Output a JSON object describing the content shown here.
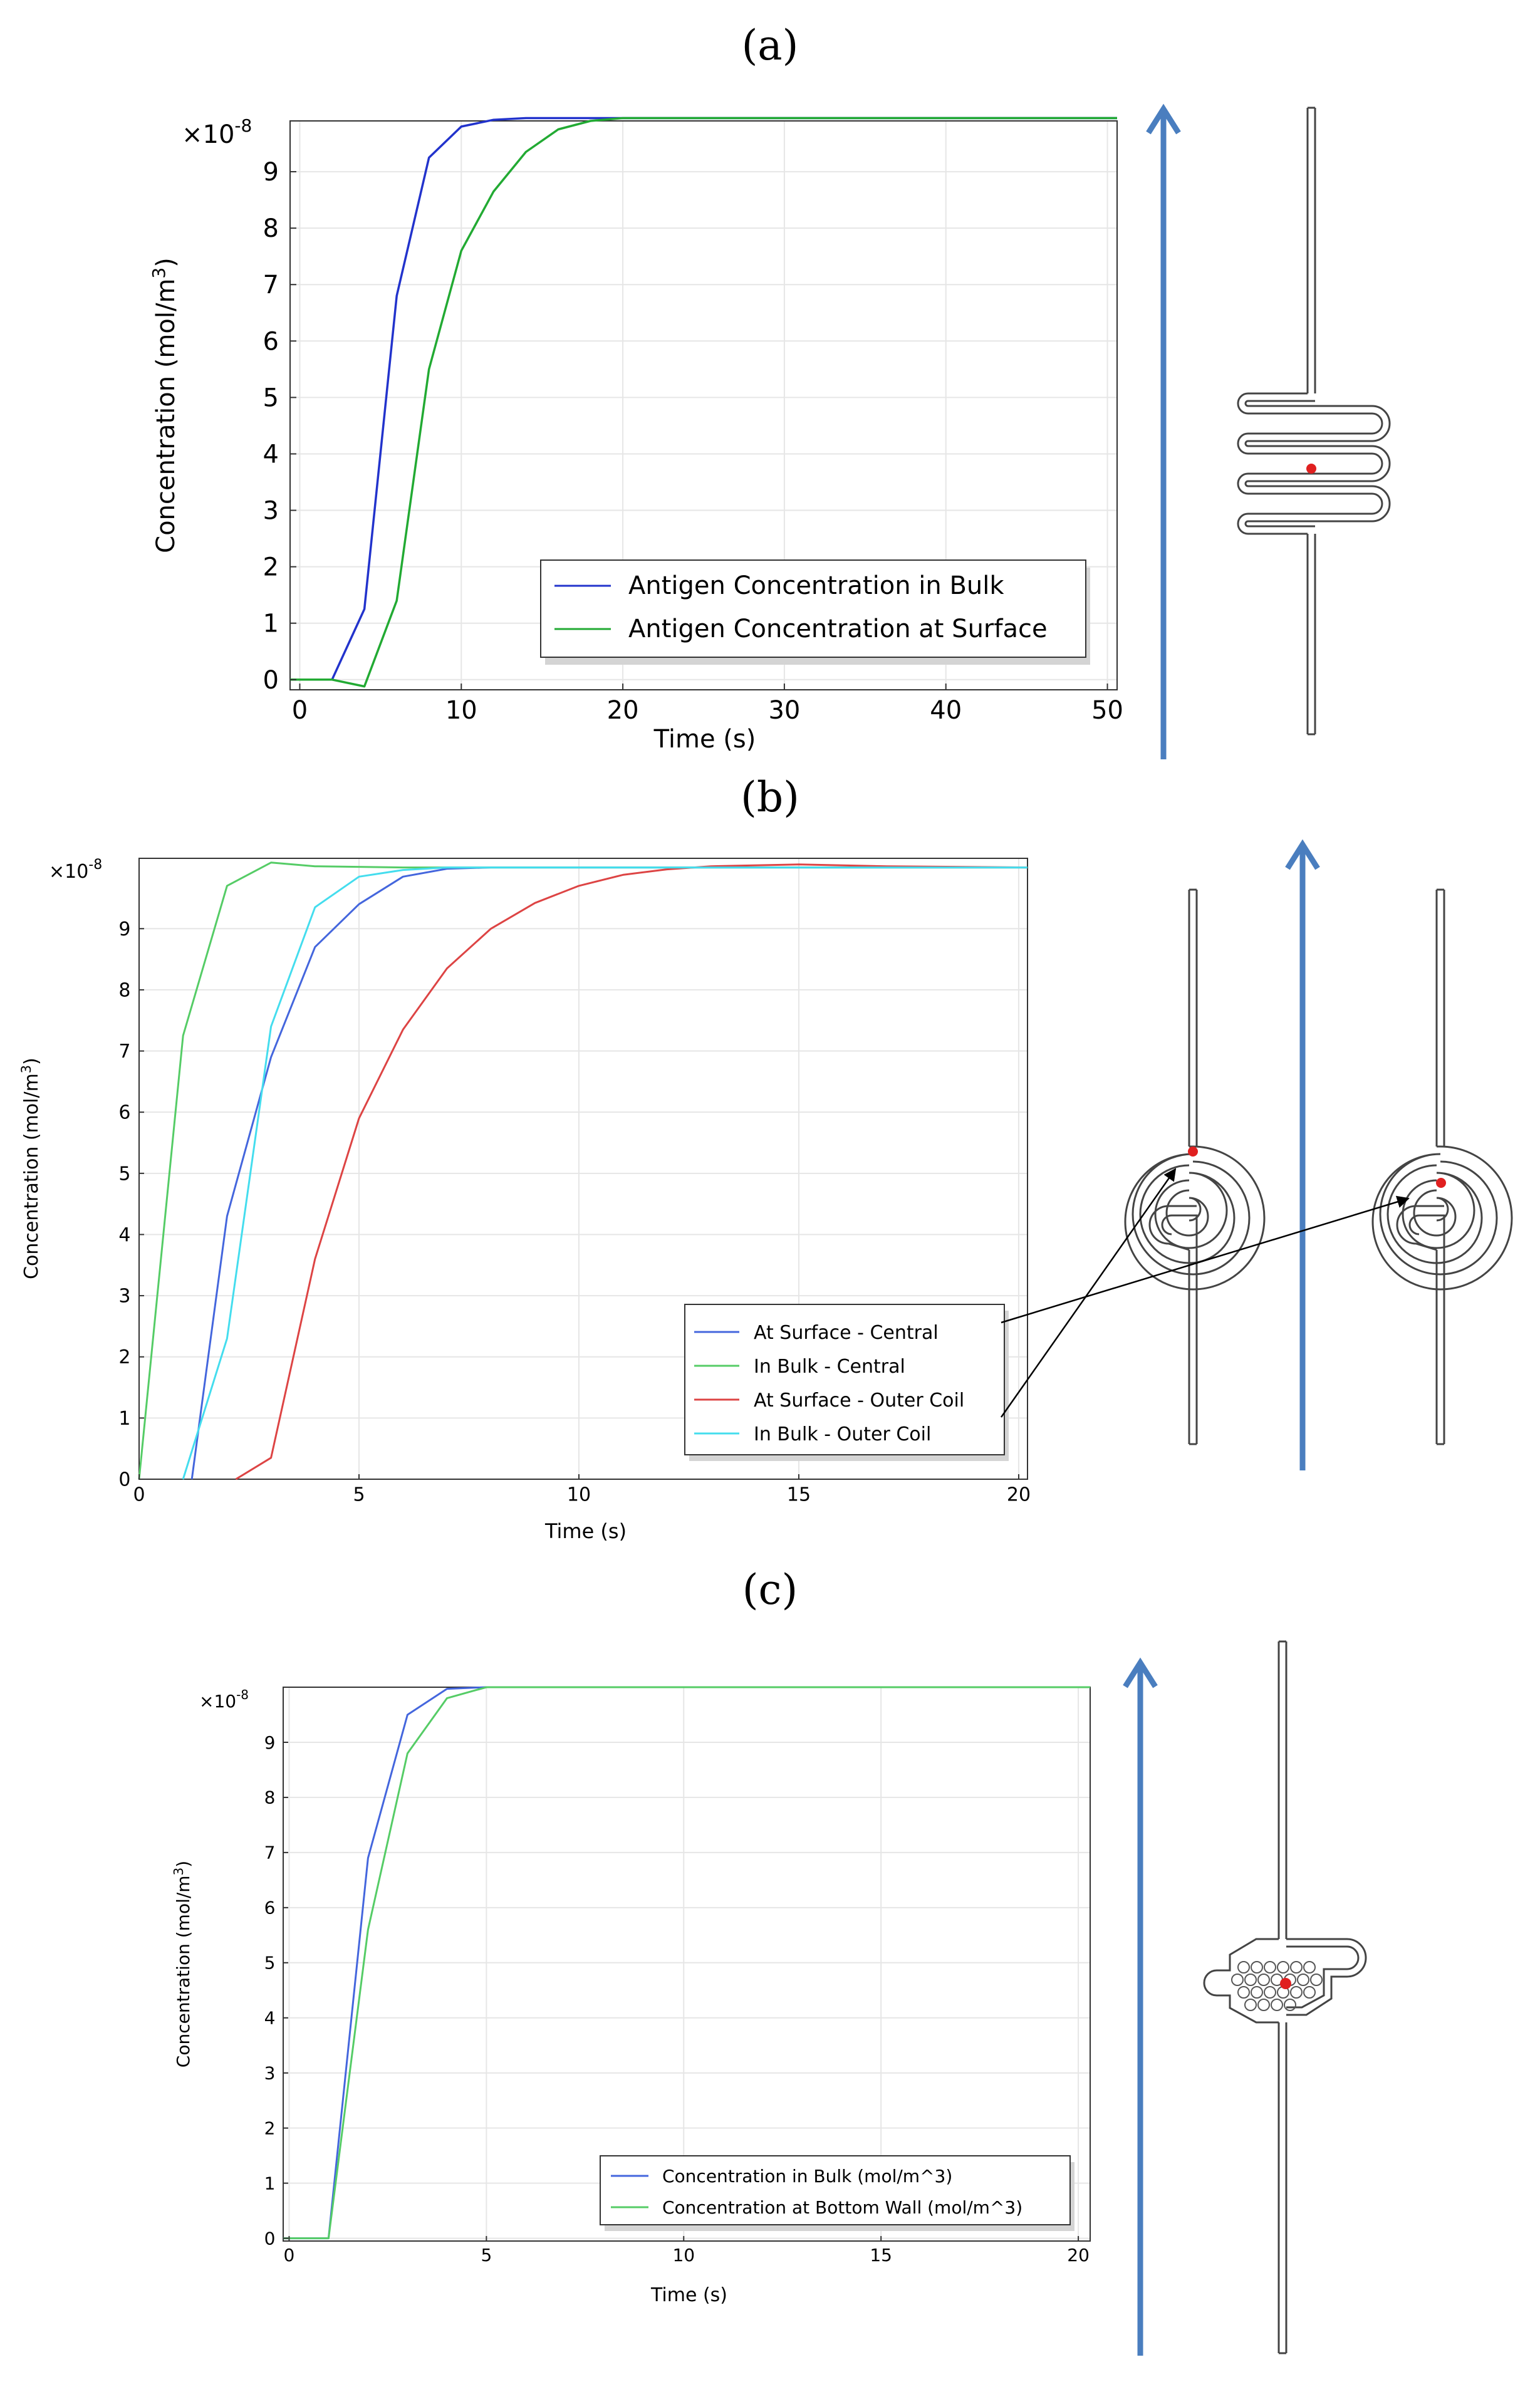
{
  "panels": [
    {
      "label": "(a)",
      "multiplier_prefix": "×10",
      "multiplier_exp": "-8",
      "ylabel_main": "Concentration (mol/m",
      "ylabel_sup": "3",
      "ylabel_end": ")",
      "diagram": "serpentine-channel",
      "arrow_color": "#4a7ebf",
      "chart_data": {
        "type": "line",
        "title": "",
        "xlabel": "Time (s)",
        "ylabel": "Concentration (mol/m3)",
        "xlim": [
          -0.6,
          50.6
        ],
        "ylim": [
          -0.18,
          9.9
        ],
        "xticks": [
          0,
          10,
          20,
          30,
          40,
          50
        ],
        "yticks": [
          0,
          1,
          2,
          3,
          4,
          5,
          6,
          7,
          8,
          9
        ],
        "grid": true,
        "legend_position": "bottom-right",
        "series": [
          {
            "name": "Antigen Concentration in Bulk",
            "color": "#2233cc",
            "x": [
              -0.6,
              2,
              4,
              6,
              8,
              10,
              12,
              14,
              16,
              18,
              20,
              50.6
            ],
            "y": [
              0,
              0,
              1.25,
              6.8,
              9.25,
              9.8,
              9.92,
              9.95,
              9.95,
              9.95,
              9.95,
              9.95
            ]
          },
          {
            "name": "Antigen Concentration at Surface",
            "color": "#22aa33",
            "x": [
              -0.6,
              2,
              4,
              6,
              8,
              10,
              12,
              14,
              16,
              18,
              20,
              22,
              50.6
            ],
            "y": [
              0,
              0,
              -0.12,
              1.4,
              5.5,
              7.6,
              8.65,
              9.35,
              9.75,
              9.9,
              9.95,
              9.95,
              9.95
            ]
          }
        ]
      }
    },
    {
      "label": "(b)",
      "multiplier_prefix": "×10",
      "multiplier_exp": "-8",
      "ylabel_main": "Concentration (mol/m",
      "ylabel_sup": "3",
      "ylabel_end": ")",
      "diagram": "spiral-channels",
      "arrow_color": "#4a7ebf",
      "chart_data": {
        "type": "line",
        "title": "",
        "xlabel": "Time (s)",
        "ylabel": "Concentration (mol/m3)",
        "xlim": [
          0,
          20.2
        ],
        "ylim": [
          0,
          10.15
        ],
        "xticks": [
          0,
          5,
          10,
          15,
          20
        ],
        "yticks": [
          0,
          1,
          2,
          3,
          4,
          5,
          6,
          7,
          8,
          9
        ],
        "grid": true,
        "legend_position": "bottom-right",
        "series": [
          {
            "name": "At Surface - Central",
            "color": "#4466dd",
            "x": [
              1.2,
              2,
              3,
              4,
              5,
              6,
              7,
              8,
              10,
              20.2
            ],
            "y": [
              0,
              4.3,
              6.9,
              8.7,
              9.4,
              9.85,
              9.98,
              10.0,
              10.0,
              10.0
            ]
          },
          {
            "name": "In Bulk - Central",
            "color": "#55cc66",
            "x": [
              0,
              1,
              2,
              3,
              4,
              6,
              8,
              20.2
            ],
            "y": [
              0,
              7.25,
              9.7,
              10.08,
              10.02,
              10.0,
              10.0,
              10.0
            ]
          },
          {
            "name": "At Surface - Outer Coil",
            "color": "#dd4444",
            "x": [
              2.2,
              3,
              4,
              5,
              6,
              7,
              8,
              9,
              10,
              11,
              12,
              13,
              15,
              17,
              20.2
            ],
            "y": [
              0,
              0.35,
              3.6,
              5.9,
              7.35,
              8.35,
              9.0,
              9.42,
              9.7,
              9.88,
              9.97,
              10.02,
              10.05,
              10.02,
              10.0
            ]
          },
          {
            "name": "In Bulk - Outer Coil",
            "color": "#44ddee",
            "x": [
              1,
              2,
              3,
              4,
              5,
              6,
              7,
              20.2
            ],
            "y": [
              0,
              2.3,
              7.4,
              9.35,
              9.85,
              9.96,
              10.0,
              10.0
            ]
          }
        ]
      }
    },
    {
      "label": "(c)",
      "multiplier_prefix": "×10",
      "multiplier_exp": "-8",
      "ylabel_main": "Concentration (mol/m",
      "ylabel_sup": "3",
      "ylabel_end": ")",
      "diagram": "pillar-chamber-channel",
      "arrow_color": "#4a7ebf",
      "chart_data": {
        "type": "line",
        "title": "",
        "xlabel": "Time (s)",
        "ylabel": "Concentration (mol/m3)",
        "xlim": [
          -0.15,
          20.3
        ],
        "ylim": [
          -0.05,
          10.0
        ],
        "xticks": [
          0,
          5,
          10,
          15,
          20
        ],
        "yticks": [
          0,
          1,
          2,
          3,
          4,
          5,
          6,
          7,
          8,
          9
        ],
        "grid": true,
        "legend_position": "bottom-right",
        "series": [
          {
            "name": "Concentration in Bulk (mol/m^3)",
            "color": "#4466dd",
            "x": [
              -0.15,
              1,
              2,
              3,
              4,
              5,
              20.3
            ],
            "y": [
              0,
              0,
              6.9,
              9.5,
              9.97,
              10.0,
              10.0
            ]
          },
          {
            "name": "Concentration at Bottom Wall (mol/m^3)",
            "color": "#55cc66",
            "x": [
              -0.15,
              1,
              2,
              3,
              4,
              5,
              20.3
            ],
            "y": [
              0,
              0,
              5.6,
              8.8,
              9.8,
              10.0,
              10.0
            ]
          }
        ]
      }
    }
  ]
}
